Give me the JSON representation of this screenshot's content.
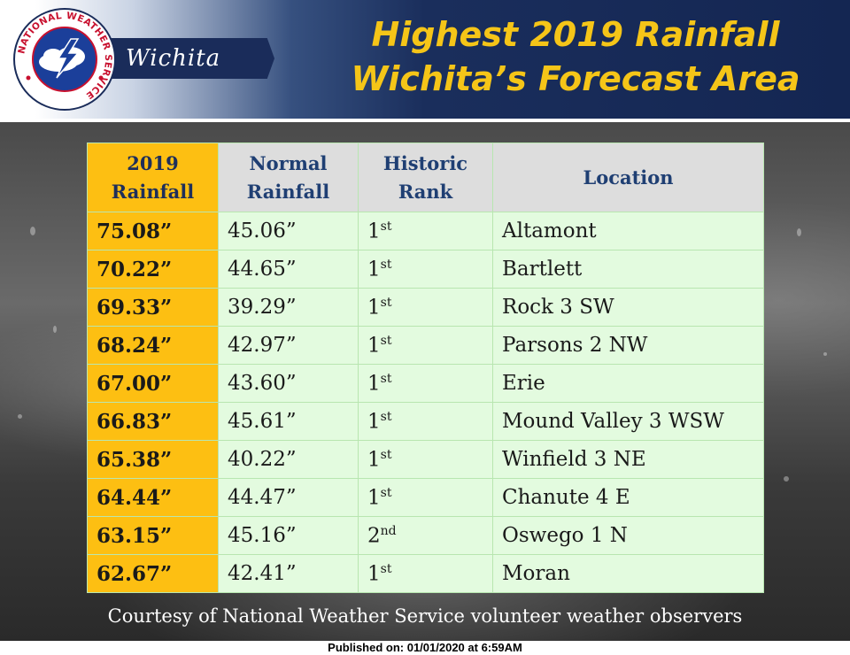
{
  "header": {
    "office_name": "Wichita",
    "title_line1": "Highest 2019 Rainfall",
    "title_line2": "Wichita’s Forecast Area"
  },
  "logo": {
    "text": "NATIONAL WEATHER SERVICE",
    "icon": "nws-logo"
  },
  "colors": {
    "title": "#f5c518",
    "header_bg": "#1a2e5c",
    "rainfall_col": "#fdbf12",
    "row_bg": "#e3fbdf",
    "header_text": "#1f3f73"
  },
  "chart_data": {
    "type": "table",
    "columns": [
      "2019 Rainfall",
      "Normal Rainfall",
      "Historic Rank",
      "Location"
    ],
    "rows": [
      {
        "rainfall": "75.08”",
        "normal": "45.06”",
        "rank_num": "1",
        "rank_suffix": "st",
        "location": "Altamont"
      },
      {
        "rainfall": "70.22”",
        "normal": "44.65”",
        "rank_num": "1",
        "rank_suffix": "st",
        "location": "Bartlett"
      },
      {
        "rainfall": "69.33”",
        "normal": "39.29”",
        "rank_num": "1",
        "rank_suffix": "st",
        "location": "Rock 3 SW"
      },
      {
        "rainfall": "68.24”",
        "normal": "42.97”",
        "rank_num": "1",
        "rank_suffix": "st",
        "location": "Parsons 2 NW"
      },
      {
        "rainfall": "67.00”",
        "normal": "43.60”",
        "rank_num": "1",
        "rank_suffix": "st",
        "location": "Erie"
      },
      {
        "rainfall": "66.83”",
        "normal": "45.61”",
        "rank_num": "1",
        "rank_suffix": "st",
        "location": "Mound Valley 3 WSW"
      },
      {
        "rainfall": "65.38”",
        "normal": "40.22”",
        "rank_num": "1",
        "rank_suffix": "st",
        "location": "Winfield 3 NE"
      },
      {
        "rainfall": "64.44”",
        "normal": "44.47”",
        "rank_num": "1",
        "rank_suffix": "st",
        "location": "Chanute 4 E"
      },
      {
        "rainfall": "63.15”",
        "normal": "45.16”",
        "rank_num": "2",
        "rank_suffix": "nd",
        "location": "Oswego 1 N"
      },
      {
        "rainfall": "62.67”",
        "normal": "42.41”",
        "rank_num": "1",
        "rank_suffix": "st",
        "location": "Moran"
      }
    ]
  },
  "table": {
    "headers": {
      "rainfall_line1": "2019",
      "rainfall_line2": "Rainfall",
      "normal_line1": "Normal",
      "normal_line2": "Rainfall",
      "rank_line1": "Historic",
      "rank_line2": "Rank",
      "location": "Location"
    }
  },
  "footer": {
    "courtesy": "Courtesy of  National Weather Service volunteer weather observers",
    "published": "Published on: 01/01/2020 at 6:59AM"
  }
}
